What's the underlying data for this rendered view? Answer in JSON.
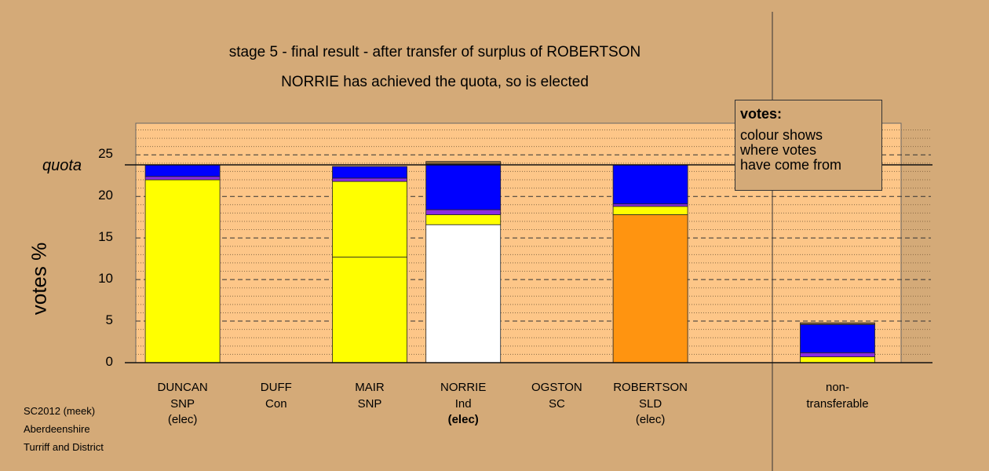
{
  "title": "stage 5 - final result - after transfer of surplus of ROBERTSON",
  "subtitle": "NORRIE has achieved the quota, so is elected",
  "footer": [
    "SC2012 (meek)",
    "Aberdeenshire",
    "Turriff and District"
  ],
  "legend": {
    "title": "votes:",
    "lines": [
      "colour shows",
      "where votes",
      "have come from"
    ]
  },
  "colors": {
    "background": "#d4aa78",
    "plot_bg": "#fdc688",
    "snp": "#ffff00",
    "ind": "#ffffff",
    "sld": "#ff9410",
    "con": "#0000ff",
    "sc": "#8a2be2",
    "other": "#8b6a3e"
  },
  "chart_data": {
    "type": "bar",
    "stacked": true,
    "ylabel": "votes %",
    "ylim": [
      0,
      28.8
    ],
    "yticks": [
      0,
      5,
      10,
      15,
      20,
      25
    ],
    "quota": 23.8,
    "quota_label": "quota",
    "categories": [
      {
        "lines": [
          "DUNCAN",
          "SNP",
          "(elec)"
        ],
        "bold_last": false
      },
      {
        "lines": [
          "DUFF",
          "Con"
        ],
        "bold_last": false
      },
      {
        "lines": [
          "MAIR",
          "SNP"
        ],
        "bold_last": false
      },
      {
        "lines": [
          "NORRIE",
          "Ind",
          "(elec)"
        ],
        "bold_last": true
      },
      {
        "lines": [
          "OGSTON",
          "SC"
        ],
        "bold_last": false
      },
      {
        "lines": [
          "ROBERTSON",
          "SLD",
          "(elec)"
        ],
        "bold_last": false
      },
      {
        "lines": [],
        "bold_last": false
      },
      {
        "lines": [
          "non-",
          "transferable"
        ],
        "bold_last": false
      }
    ],
    "bars": [
      [
        {
          "from": "snp",
          "value": 22.0
        },
        {
          "from": "sc",
          "value": 0.4
        },
        {
          "from": "con",
          "value": 1.4
        }
      ],
      [],
      [
        {
          "from": "snp",
          "value": 12.7
        },
        {
          "from": "snp",
          "value": 9.1
        },
        {
          "from": "sc",
          "value": 0.4
        },
        {
          "from": "con",
          "value": 1.4
        }
      ],
      [
        {
          "from": "ind",
          "value": 16.6
        },
        {
          "from": "snp",
          "value": 1.2
        },
        {
          "from": "sc",
          "value": 0.6
        },
        {
          "from": "con",
          "value": 5.5
        },
        {
          "from": "other",
          "value": 0.3
        }
      ],
      [],
      [
        {
          "from": "sld",
          "value": 17.8
        },
        {
          "from": "snp",
          "value": 1.0
        },
        {
          "from": "sc",
          "value": 0.3
        },
        {
          "from": "con",
          "value": 4.7
        }
      ],
      [],
      [
        {
          "from": "snp",
          "value": 0.7
        },
        {
          "from": "sc",
          "value": 0.5
        },
        {
          "from": "con",
          "value": 3.4
        },
        {
          "from": "other",
          "value": 0.2
        }
      ]
    ]
  }
}
